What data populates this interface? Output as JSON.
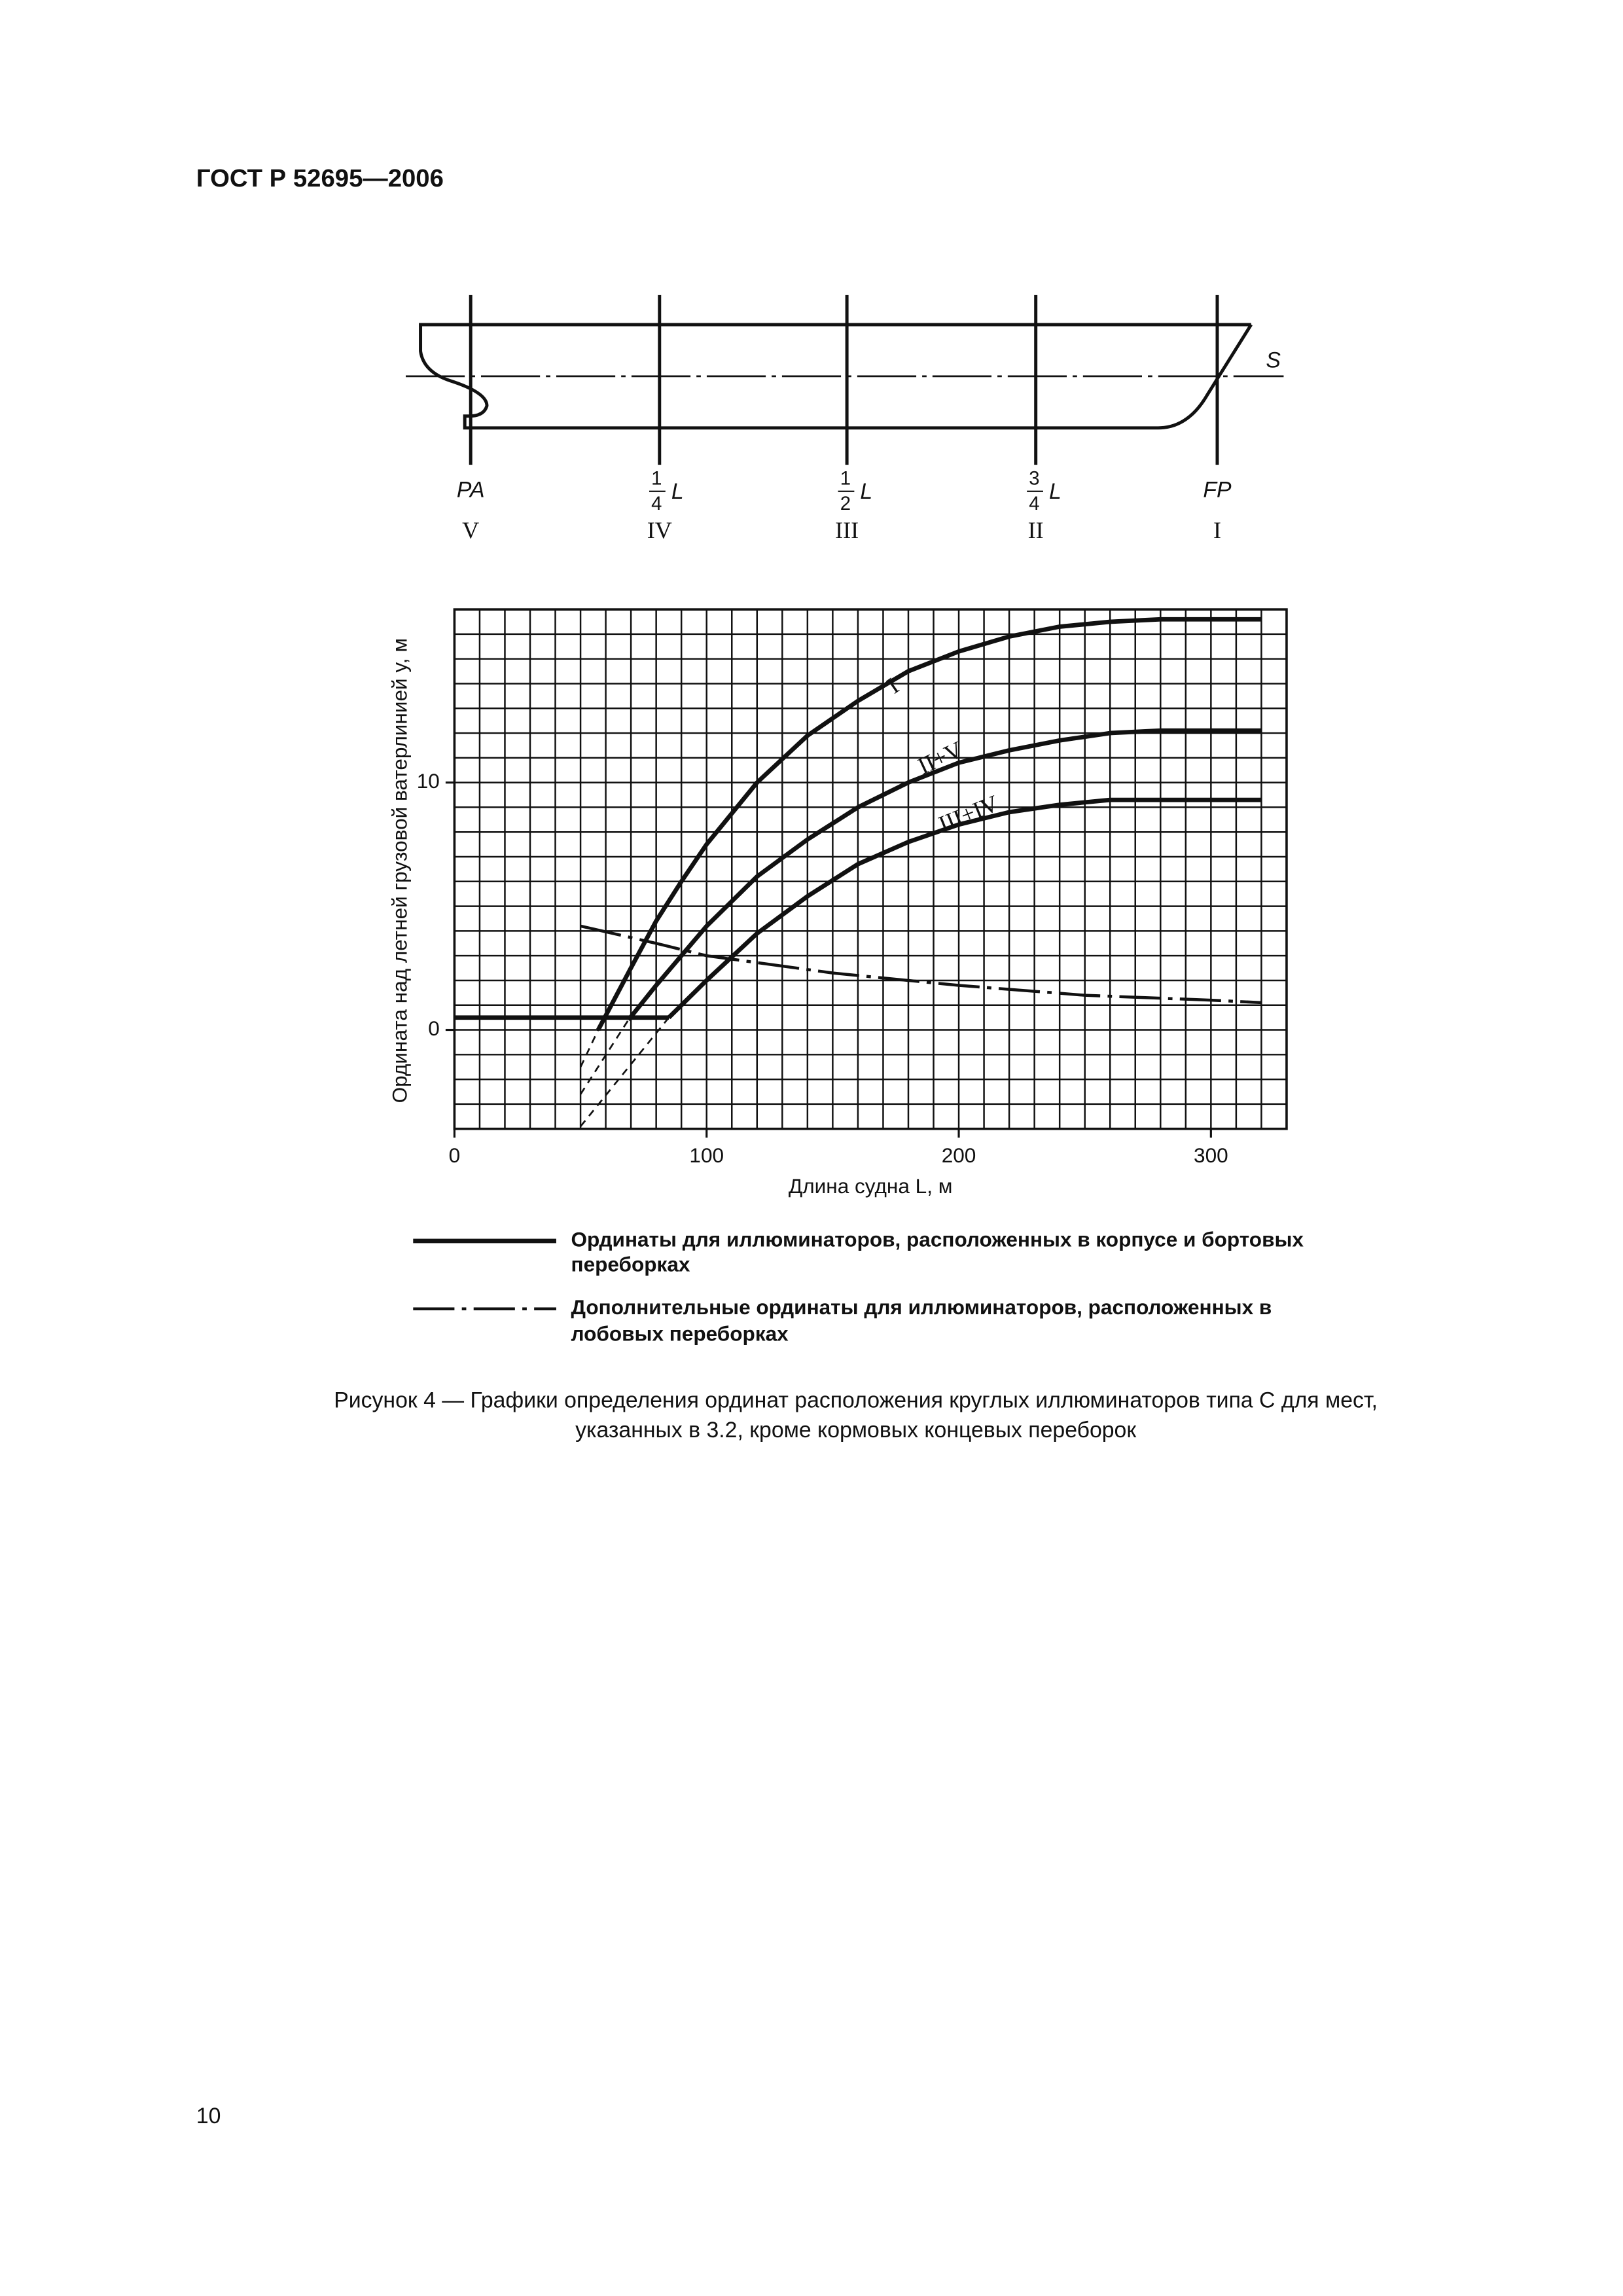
{
  "header": {
    "title": "ГОСТ Р 52695—2006"
  },
  "ship_diagram": {
    "waterline_label": "S",
    "stations": [
      {
        "label": "PA",
        "numeral": "V"
      },
      {
        "numerator": "1",
        "denominator": "4",
        "symbol": "L",
        "numeral": "IV"
      },
      {
        "numerator": "1",
        "denominator": "2",
        "symbol": "L",
        "numeral": "III"
      },
      {
        "numerator": "3",
        "denominator": "4",
        "symbol": "L",
        "numeral": "II"
      },
      {
        "label": "FP",
        "numeral": "I"
      }
    ]
  },
  "chart_data": {
    "type": "line",
    "x_label": "Длина судна L, м",
    "y_label": "Ордината над летней грузовой ватерлинией y, м",
    "xlim": [
      0,
      330
    ],
    "ylim": [
      -4,
      17
    ],
    "xticks": [
      0,
      100,
      200,
      300
    ],
    "yticks": [
      0,
      10
    ],
    "minor_grid": {
      "x": 10,
      "y": 1
    },
    "color": "#111111",
    "series": [
      {
        "name": "I",
        "style": "solid",
        "x": [
          57,
          70,
          80,
          90,
          100,
          120,
          140,
          160,
          180,
          200,
          220,
          240,
          260,
          280,
          300,
          320
        ],
        "values": [
          0,
          2.5,
          4.4,
          6.0,
          7.5,
          10.0,
          11.9,
          13.3,
          14.5,
          15.3,
          15.9,
          16.3,
          16.5,
          16.6,
          16.6,
          16.6
        ]
      },
      {
        "style": "dashed",
        "x": [
          50,
          57
        ],
        "values": [
          -1.5,
          0
        ]
      },
      {
        "name": "II+V",
        "style": "solid",
        "x": [
          69,
          80,
          90,
          100,
          120,
          140,
          160,
          180,
          200,
          220,
          240,
          260,
          280,
          300,
          320
        ],
        "values": [
          0.4,
          1.8,
          3.0,
          4.2,
          6.2,
          7.7,
          9.0,
          10.0,
          10.8,
          11.3,
          11.7,
          12.0,
          12.1,
          12.1,
          12.1
        ]
      },
      {
        "style": "dashed",
        "x": [
          50,
          69
        ],
        "values": [
          -2.6,
          0.4
        ]
      },
      {
        "name": "III+IV",
        "style": "solid",
        "x": [
          85,
          100,
          120,
          140,
          160,
          180,
          200,
          220,
          240,
          260,
          280,
          320
        ],
        "values": [
          0.5,
          2.0,
          3.9,
          5.4,
          6.7,
          7.6,
          8.3,
          8.8,
          9.1,
          9.3,
          9.3,
          9.3
        ]
      },
      {
        "style": "dashed",
        "x": [
          50,
          85
        ],
        "values": [
          -3.9,
          0.5
        ]
      },
      {
        "style": "solid",
        "x": [
          0,
          85
        ],
        "values": [
          0.5,
          0.5
        ]
      },
      {
        "style": "dash-dot",
        "x": [
          50,
          80,
          100,
          150,
          200,
          250,
          300,
          320
        ],
        "values": [
          4.2,
          3.5,
          3.0,
          2.3,
          1.8,
          1.4,
          1.2,
          1.1
        ]
      }
    ]
  },
  "legend": [
    {
      "style": "solid",
      "lines": [
        "Ординаты для иллюминаторов, расположенных в корпусе и бортовых",
        "переборках"
      ]
    },
    {
      "style": "dash-dot",
      "lines": [
        "Дополнительные ординаты для иллюминаторов, расположенных в",
        "лобовых переборках"
      ]
    }
  ],
  "caption": {
    "lines": [
      "Рисунок 4 — Графики определения ординат расположения круглых иллюминаторов типа С для мест,",
      "указанных в 3.2, кроме кормовых концевых переборок"
    ]
  },
  "page_number": "10"
}
